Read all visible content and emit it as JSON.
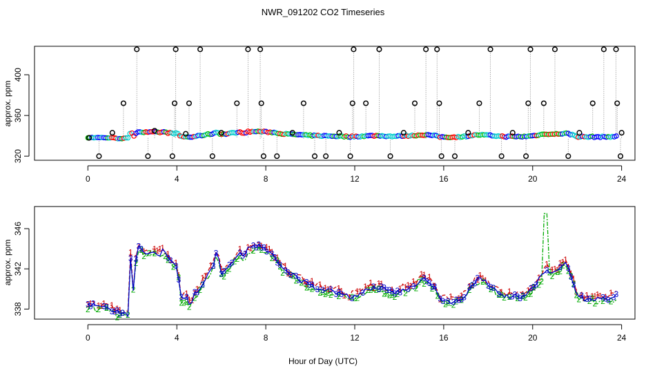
{
  "chart_data": [
    {
      "type": "scatter",
      "title": "NWR_091202  CO2 Timeseries",
      "ylabel": "approx. ppm",
      "xlim": [
        -2.4,
        24.6
      ],
      "ylim": [
        316,
        428
      ],
      "xticks": [
        0,
        4,
        8,
        12,
        16,
        20,
        24
      ],
      "yticks": [
        320,
        360,
        400
      ],
      "ytick_labels": [
        "320",
        "360",
        "400"
      ],
      "raw_points": [
        [
          0.05,
          338
        ],
        [
          0.5,
          320
        ],
        [
          1.1,
          343
        ],
        [
          1.6,
          372
        ],
        [
          2.2,
          425
        ],
        [
          2.7,
          320
        ],
        [
          3.0,
          345
        ],
        [
          3.8,
          320
        ],
        [
          3.9,
          372
        ],
        [
          3.95,
          425
        ],
        [
          4.4,
          342
        ],
        [
          4.55,
          372
        ],
        [
          5.05,
          425
        ],
        [
          5.6,
          320
        ],
        [
          6.0,
          343
        ],
        [
          6.7,
          372
        ],
        [
          7.2,
          425
        ],
        [
          7.75,
          425
        ],
        [
          7.8,
          372
        ],
        [
          7.9,
          320
        ],
        [
          8.5,
          320
        ],
        [
          9.2,
          343
        ],
        [
          9.7,
          372
        ],
        [
          10.2,
          320
        ],
        [
          10.7,
          320
        ],
        [
          11.3,
          343
        ],
        [
          11.8,
          320
        ],
        [
          11.9,
          372
        ],
        [
          11.95,
          425
        ],
        [
          12.5,
          372
        ],
        [
          13.1,
          425
        ],
        [
          13.6,
          320
        ],
        [
          14.2,
          343
        ],
        [
          14.7,
          372
        ],
        [
          15.2,
          425
        ],
        [
          15.7,
          425
        ],
        [
          15.8,
          372
        ],
        [
          15.9,
          320
        ],
        [
          16.5,
          320
        ],
        [
          17.1,
          343
        ],
        [
          17.6,
          372
        ],
        [
          18.1,
          425
        ],
        [
          18.6,
          320
        ],
        [
          19.1,
          343
        ],
        [
          19.7,
          320
        ],
        [
          19.8,
          372
        ],
        [
          19.9,
          425
        ],
        [
          20.5,
          372
        ],
        [
          21.0,
          425
        ],
        [
          21.6,
          320
        ],
        [
          22.1,
          343
        ],
        [
          22.7,
          372
        ],
        [
          23.2,
          425
        ],
        [
          23.75,
          425
        ],
        [
          23.8,
          372
        ],
        [
          23.95,
          320
        ],
        [
          24.0,
          343
        ]
      ],
      "series_colors": [
        "#000000",
        "#ff0000",
        "#00bb00",
        "#0000ff",
        "#00cccc"
      ]
    },
    {
      "type": "line",
      "ylabel": "approx. ppm",
      "xlabel": "Hour of Day (UTC)",
      "xlim": [
        -2.4,
        24.6
      ],
      "ylim": [
        337.0,
        348.2
      ],
      "xticks": [
        0,
        4,
        8,
        12,
        16,
        20,
        24
      ],
      "yticks": [
        338,
        342,
        346
      ],
      "ytick_labels": [
        "338",
        "342",
        "346"
      ],
      "series": [
        {
          "marker": "1",
          "color": "#cc0000"
        },
        {
          "marker": "2",
          "color": "#00aa00"
        },
        {
          "marker": "3",
          "color": "#0000cc"
        }
      ],
      "profile": [
        [
          0.0,
          338.3
        ],
        [
          0.2,
          338.4
        ],
        [
          0.5,
          338.2
        ],
        [
          0.8,
          338.3
        ],
        [
          1.0,
          338.0
        ],
        [
          1.2,
          337.8
        ],
        [
          1.5,
          337.6
        ],
        [
          1.8,
          337.5
        ],
        [
          1.95,
          344.5
        ],
        [
          2.05,
          339.5
        ],
        [
          2.2,
          344.2
        ],
        [
          2.4,
          343.8
        ],
        [
          2.6,
          343.5
        ],
        [
          2.8,
          343.5
        ],
        [
          3.0,
          343.6
        ],
        [
          3.2,
          343.4
        ],
        [
          3.4,
          343.8
        ],
        [
          3.6,
          343.0
        ],
        [
          3.8,
          342.5
        ],
        [
          4.0,
          342.5
        ],
        [
          4.2,
          339.0
        ],
        [
          4.4,
          339.2
        ],
        [
          4.6,
          338.5
        ],
        [
          4.8,
          339.5
        ],
        [
          5.0,
          339.8
        ],
        [
          5.2,
          340.8
        ],
        [
          5.4,
          341.5
        ],
        [
          5.6,
          342.0
        ],
        [
          5.8,
          343.8
        ],
        [
          6.0,
          341.5
        ],
        [
          6.2,
          341.8
        ],
        [
          6.4,
          342.5
        ],
        [
          6.6,
          343.0
        ],
        [
          6.8,
          343.5
        ],
        [
          7.0,
          343.0
        ],
        [
          7.2,
          344.0
        ],
        [
          7.5,
          344.2
        ],
        [
          7.8,
          344.3
        ],
        [
          8.0,
          343.8
        ],
        [
          8.3,
          343.5
        ],
        [
          8.6,
          342.5
        ],
        [
          9.0,
          341.5
        ],
        [
          9.4,
          341.2
        ],
        [
          9.8,
          340.5
        ],
        [
          10.2,
          340.2
        ],
        [
          10.6,
          340.0
        ],
        [
          11.0,
          339.8
        ],
        [
          11.4,
          339.5
        ],
        [
          11.8,
          339.2
        ],
        [
          12.2,
          339.5
        ],
        [
          12.6,
          340.0
        ],
        [
          13.0,
          340.2
        ],
        [
          13.4,
          339.8
        ],
        [
          13.8,
          339.5
        ],
        [
          14.2,
          340.0
        ],
        [
          14.6,
          340.2
        ],
        [
          15.0,
          341.0
        ],
        [
          15.3,
          340.8
        ],
        [
          15.6,
          340.2
        ],
        [
          15.8,
          339.0
        ],
        [
          16.2,
          338.8
        ],
        [
          16.6,
          338.8
        ],
        [
          17.0,
          339.5
        ],
        [
          17.3,
          340.5
        ],
        [
          17.6,
          341.0
        ],
        [
          18.0,
          340.5
        ],
        [
          18.4,
          339.8
        ],
        [
          18.8,
          339.3
        ],
        [
          19.2,
          339.2
        ],
        [
          19.6,
          339.3
        ],
        [
          20.0,
          340.0
        ],
        [
          20.3,
          341.0
        ],
        [
          20.6,
          342.0
        ],
        [
          20.9,
          341.5
        ],
        [
          21.2,
          342.0
        ],
        [
          21.5,
          342.5
        ],
        [
          21.8,
          341.0
        ],
        [
          22.0,
          339.2
        ],
        [
          22.4,
          339.0
        ],
        [
          22.8,
          339.0
        ],
        [
          23.2,
          339.0
        ],
        [
          23.6,
          339.2
        ],
        [
          23.8,
          339.3
        ]
      ]
    }
  ]
}
